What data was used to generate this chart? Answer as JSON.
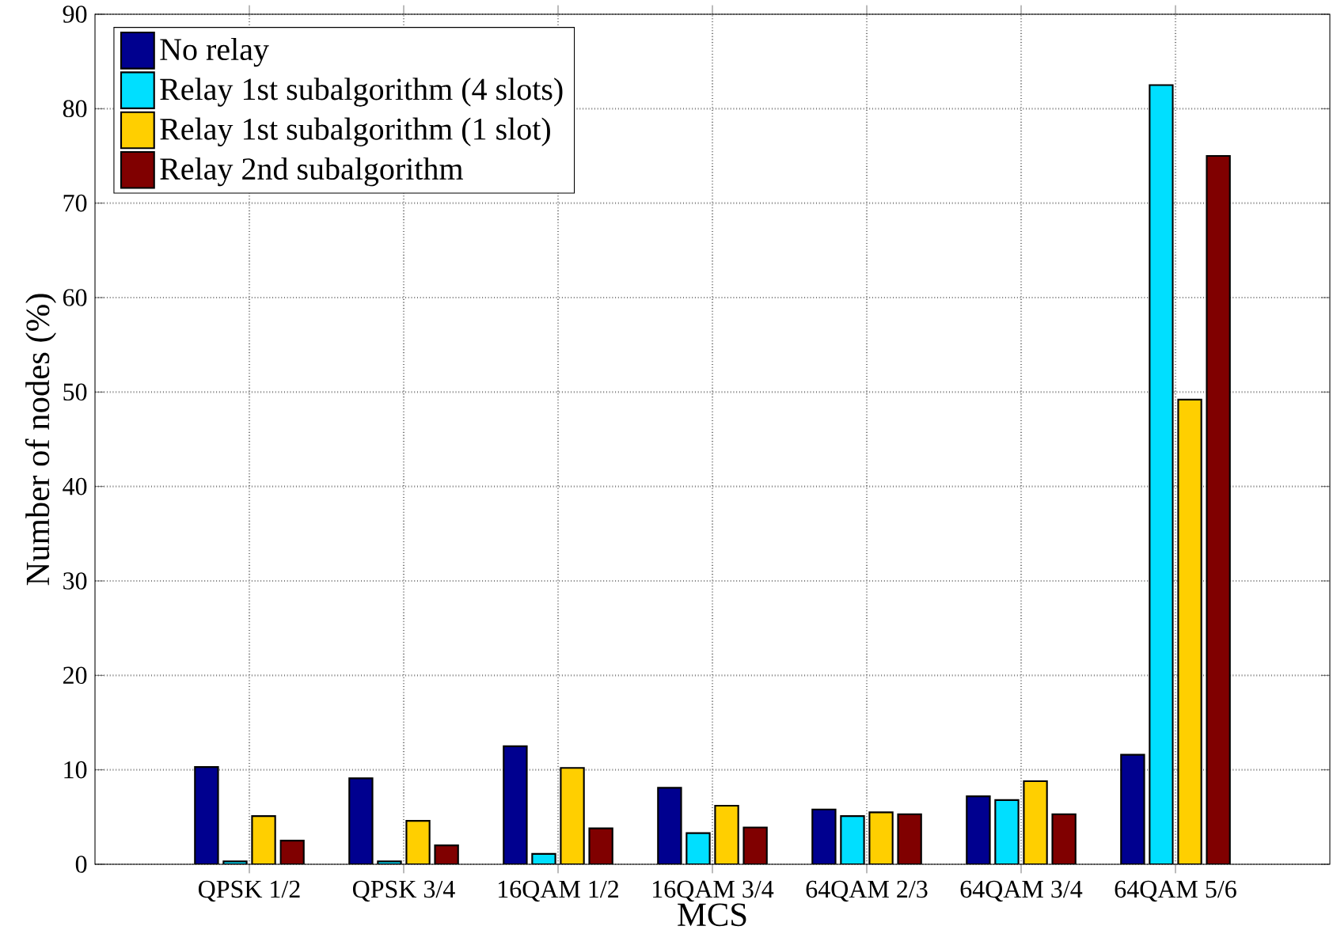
{
  "chart_data": {
    "type": "bar",
    "xlabel": "MCS",
    "ylabel": "Number of nodes (%)",
    "categories": [
      "QPSK 1/2",
      "QPSK 3/4",
      "16QAM 1/2",
      "16QAM 3/4",
      "64QAM 2/3",
      "64QAM 3/4",
      "64QAM 5/6"
    ],
    "series": [
      {
        "name": "No relay",
        "color": "#00008f",
        "values": [
          10.3,
          9.1,
          12.5,
          8.1,
          5.8,
          7.2,
          11.6
        ]
      },
      {
        "name": "Relay 1st subalgorithm (4 slots)",
        "color": "#00dfff",
        "values": [
          0.3,
          0.3,
          1.1,
          3.3,
          5.1,
          6.8,
          82.5
        ]
      },
      {
        "name": "Relay 1st subalgorithm (1 slot)",
        "color": "#ffcf00",
        "values": [
          5.1,
          4.6,
          10.2,
          6.2,
          5.5,
          8.8,
          49.2
        ]
      },
      {
        "name": "Relay 2nd subalgorithm",
        "color": "#800000",
        "values": [
          2.5,
          2.0,
          3.8,
          3.9,
          5.3,
          5.3,
          75
        ]
      }
    ],
    "ylim": [
      0,
      90
    ],
    "yticks": [
      0,
      10,
      20,
      30,
      40,
      50,
      60,
      70,
      80,
      90
    ],
    "grid": true,
    "legend": "top left"
  }
}
